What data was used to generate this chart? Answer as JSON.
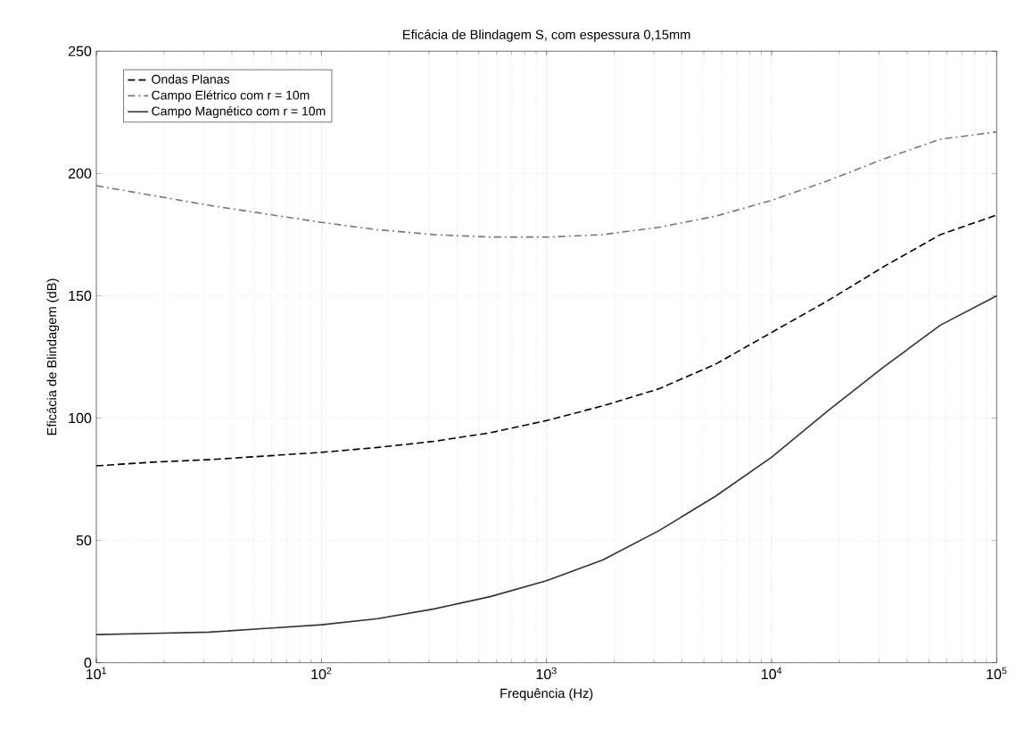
{
  "chart_data": {
    "type": "line",
    "title": "Eficácia de Blindagem S, com espessura 0,15mm",
    "xlabel": "Frequência (Hz)",
    "ylabel": "Eficácia de Blindagem (dB)",
    "x": [
      10,
      17.8,
      31.6,
      56.2,
      100,
      178,
      316,
      562,
      1000,
      1778,
      3162,
      5623,
      10000,
      17783,
      31623,
      56234,
      100000
    ],
    "series": [
      {
        "name": "Ondas Planas",
        "color": "#000000",
        "line_style": "dashed",
        "values": [
          80.5,
          82,
          83,
          84.5,
          86,
          88,
          90.5,
          94,
          99,
          105,
          112,
          122,
          135,
          148,
          162,
          175,
          183
        ]
      },
      {
        "name": "Campo Elétrico com r = 10m",
        "color": "#777777",
        "line_style": "dashdot",
        "values": [
          195,
          191,
          187,
          183.5,
          180,
          177,
          175,
          174,
          174,
          175,
          178,
          182.5,
          189,
          197,
          206,
          214,
          217
        ]
      },
      {
        "name": "Campo Magnético com r = 10m",
        "color": "#333333",
        "line_style": "solid",
        "values": [
          11.5,
          12,
          12.5,
          14,
          15.5,
          18,
          22,
          27,
          33.5,
          42,
          54,
          68,
          84,
          103,
          121,
          138,
          150
        ]
      }
    ],
    "log": "x",
    "xlim": [
      10,
      100000
    ],
    "xticks": [
      {
        "value": 10,
        "label": "10$^{1}$"
      },
      {
        "value": 100,
        "label": "10$^{2}$"
      },
      {
        "value": 1000,
        "label": "10$^{3}$"
      },
      {
        "value": 10000,
        "label": "10$^{4}$"
      },
      {
        "value": 100000,
        "label": "10$^{5}$"
      }
    ],
    "ylim": [
      0,
      250
    ],
    "yticks": [
      0,
      50,
      100,
      150,
      200,
      250
    ],
    "grid": true,
    "legend": "top left",
    "marker": "none"
  }
}
